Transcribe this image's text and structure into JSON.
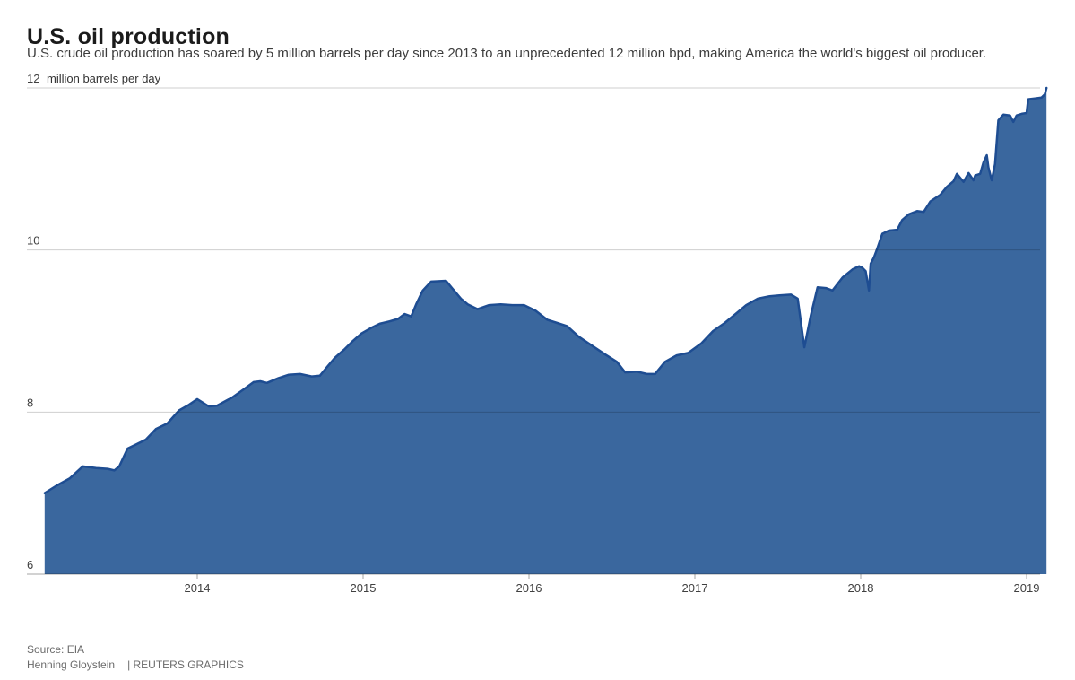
{
  "header": {
    "title": "U.S. oil production",
    "subtitle": "U.S. crude oil production has soared by 5 million barrels per day since 2013 to an unprecedented 12 million bpd, making America the world's biggest oil producer."
  },
  "footer": {
    "source": "Source: EIA",
    "byline": "Henning Gloystein",
    "credit": "| REUTERS GRAPHICS"
  },
  "chart_data": {
    "type": "area",
    "title": "U.S. oil production",
    "unit_label": "million barrels per day",
    "xlabel": "",
    "ylabel": "million barrels per day",
    "ylim": [
      6,
      12
    ],
    "xlim": [
      2013.08,
      2019.12
    ],
    "y_ticks": [
      6,
      8,
      10,
      12
    ],
    "x_ticks": [
      2014,
      2015,
      2016,
      2017,
      2018,
      2019
    ],
    "grid": true,
    "legend": "none",
    "colors": {
      "area_fill": "#3A679E",
      "area_stroke": "#1E4D92",
      "grid": "rgba(0,0,0,0.19)",
      "axis": "rgba(0,0,0,0.35)",
      "tick_text": "#404040"
    },
    "series": [
      {
        "name": "U.S. crude oil production (million barrels per day)",
        "points": [
          [
            2013.08,
            7.0
          ],
          [
            2013.15,
            7.09
          ],
          [
            2013.23,
            7.18
          ],
          [
            2013.31,
            7.33
          ],
          [
            2013.39,
            7.31
          ],
          [
            2013.46,
            7.3
          ],
          [
            2013.5,
            7.28
          ],
          [
            2013.53,
            7.33
          ],
          [
            2013.58,
            7.55
          ],
          [
            2013.63,
            7.6
          ],
          [
            2013.69,
            7.66
          ],
          [
            2013.75,
            7.79
          ],
          [
            2013.82,
            7.86
          ],
          [
            2013.89,
            8.02
          ],
          [
            2013.95,
            8.09
          ],
          [
            2014.0,
            8.16
          ],
          [
            2014.07,
            8.07
          ],
          [
            2014.12,
            8.08
          ],
          [
            2014.21,
            8.18
          ],
          [
            2014.28,
            8.28
          ],
          [
            2014.34,
            8.37
          ],
          [
            2014.38,
            8.38
          ],
          [
            2014.42,
            8.36
          ],
          [
            2014.49,
            8.42
          ],
          [
            2014.55,
            8.46
          ],
          [
            2014.62,
            8.47
          ],
          [
            2014.69,
            8.44
          ],
          [
            2014.74,
            8.45
          ],
          [
            2014.78,
            8.55
          ],
          [
            2014.83,
            8.67
          ],
          [
            2014.89,
            8.78
          ],
          [
            2014.94,
            8.88
          ],
          [
            2014.99,
            8.97
          ],
          [
            2015.05,
            9.04
          ],
          [
            2015.1,
            9.09
          ],
          [
            2015.16,
            9.12
          ],
          [
            2015.21,
            9.15
          ],
          [
            2015.25,
            9.21
          ],
          [
            2015.29,
            9.18
          ],
          [
            2015.32,
            9.33
          ],
          [
            2015.36,
            9.5
          ],
          [
            2015.41,
            9.61
          ],
          [
            2015.5,
            9.62
          ],
          [
            2015.54,
            9.52
          ],
          [
            2015.59,
            9.4
          ],
          [
            2015.63,
            9.33
          ],
          [
            2015.69,
            9.27
          ],
          [
            2015.76,
            9.32
          ],
          [
            2015.83,
            9.33
          ],
          [
            2015.9,
            9.32
          ],
          [
            2015.97,
            9.32
          ],
          [
            2016.04,
            9.25
          ],
          [
            2016.11,
            9.14
          ],
          [
            2016.17,
            9.1
          ],
          [
            2016.23,
            9.06
          ],
          [
            2016.3,
            8.93
          ],
          [
            2016.38,
            8.82
          ],
          [
            2016.46,
            8.71
          ],
          [
            2016.53,
            8.62
          ],
          [
            2016.58,
            8.49
          ],
          [
            2016.65,
            8.5
          ],
          [
            2016.71,
            8.47
          ],
          [
            2016.76,
            8.47
          ],
          [
            2016.82,
            8.62
          ],
          [
            2016.89,
            8.7
          ],
          [
            2016.96,
            8.73
          ],
          [
            2017.04,
            8.85
          ],
          [
            2017.11,
            9.0
          ],
          [
            2017.18,
            9.1
          ],
          [
            2017.24,
            9.2
          ],
          [
            2017.31,
            9.32
          ],
          [
            2017.38,
            9.4
          ],
          [
            2017.45,
            9.43
          ],
          [
            2017.51,
            9.44
          ],
          [
            2017.58,
            9.45
          ],
          [
            2017.62,
            9.4
          ],
          [
            2017.66,
            8.8
          ],
          [
            2017.7,
            9.2
          ],
          [
            2017.74,
            9.54
          ],
          [
            2017.79,
            9.53
          ],
          [
            2017.83,
            9.5
          ],
          [
            2017.89,
            9.66
          ],
          [
            2017.95,
            9.76
          ],
          [
            2017.99,
            9.8
          ],
          [
            2018.01,
            9.78
          ],
          [
            2018.03,
            9.74
          ],
          [
            2018.05,
            9.5
          ],
          [
            2018.06,
            9.83
          ],
          [
            2018.08,
            9.91
          ],
          [
            2018.1,
            10.02
          ],
          [
            2018.13,
            10.2
          ],
          [
            2018.17,
            10.24
          ],
          [
            2018.22,
            10.25
          ],
          [
            2018.25,
            10.37
          ],
          [
            2018.29,
            10.44
          ],
          [
            2018.34,
            10.48
          ],
          [
            2018.38,
            10.47
          ],
          [
            2018.42,
            10.6
          ],
          [
            2018.48,
            10.68
          ],
          [
            2018.52,
            10.78
          ],
          [
            2018.56,
            10.85
          ],
          [
            2018.58,
            10.94
          ],
          [
            2018.62,
            10.84
          ],
          [
            2018.65,
            10.95
          ],
          [
            2018.68,
            10.86
          ],
          [
            2018.69,
            10.92
          ],
          [
            2018.72,
            10.94
          ],
          [
            2018.74,
            11.08
          ],
          [
            2018.76,
            11.17
          ],
          [
            2018.77,
            11.02
          ],
          [
            2018.79,
            10.86
          ],
          [
            2018.81,
            11.06
          ],
          [
            2018.83,
            11.6
          ],
          [
            2018.86,
            11.67
          ],
          [
            2018.9,
            11.66
          ],
          [
            2018.92,
            11.58
          ],
          [
            2018.94,
            11.66
          ],
          [
            2018.97,
            11.68
          ],
          [
            2019.0,
            11.69
          ],
          [
            2019.01,
            11.86
          ],
          [
            2019.05,
            11.87
          ],
          [
            2019.09,
            11.88
          ],
          [
            2019.11,
            11.92
          ],
          [
            2019.12,
            12.0
          ]
        ]
      }
    ]
  }
}
